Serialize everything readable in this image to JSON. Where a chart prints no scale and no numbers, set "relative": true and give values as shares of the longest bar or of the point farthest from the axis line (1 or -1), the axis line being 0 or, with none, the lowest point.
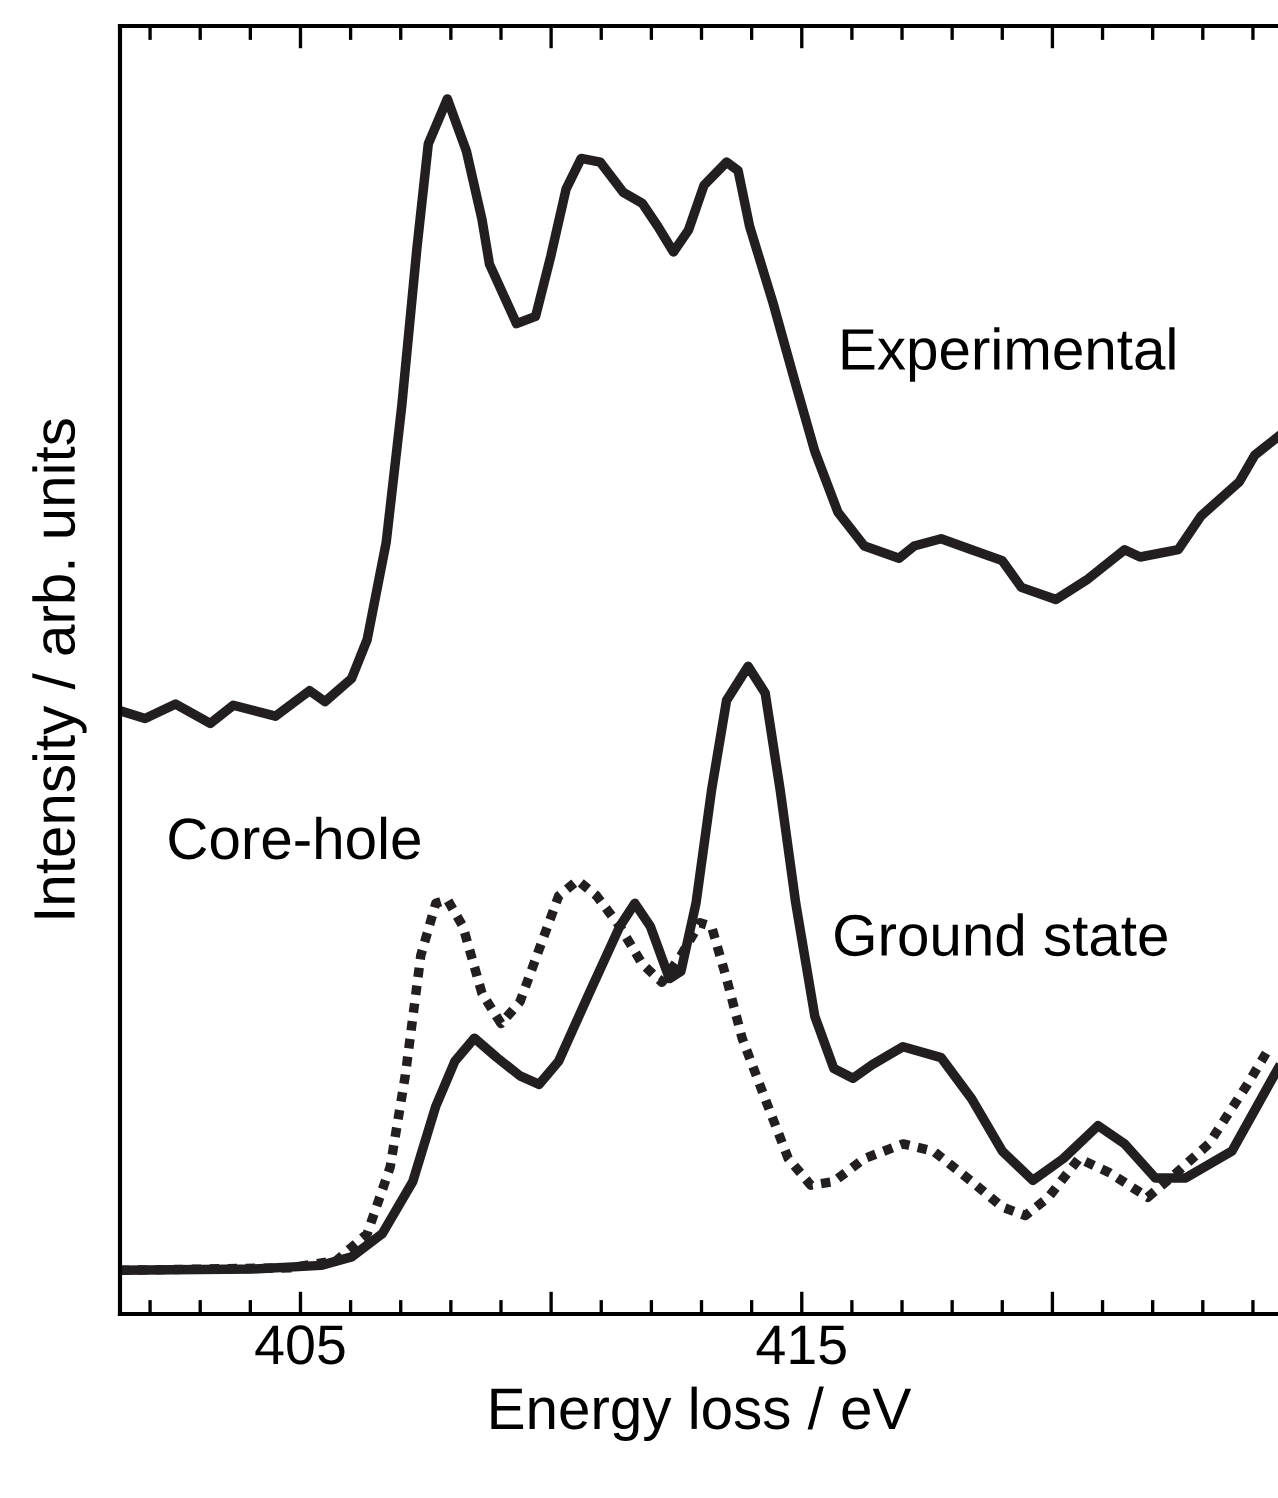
{
  "chart_data": {
    "type": "line",
    "xlabel": "Energy loss / eV",
    "ylabel": "Intensity / arb. units",
    "relative": true,
    "tick_labels": "x",
    "grid": false,
    "legend": false,
    "marker": "none",
    "xlim": [
      401.4,
      424.5
    ],
    "xticks": [
      405,
      {
        "value": 410,
        "label": null
      },
      415,
      {
        "value": 420,
        "label": null
      }
    ],
    "series": [
      {
        "name": "Experimental",
        "color": "#231f20",
        "line_style": "solid",
        "x": [
          401.44,
          401.9,
          402.51,
          403.2,
          403.66,
          404.5,
          405.18,
          405.49,
          406.02,
          406.33,
          406.71,
          407.02,
          407.32,
          407.55,
          407.93,
          408.31,
          408.62,
          408.77,
          409.31,
          409.69,
          409.99,
          410.3,
          410.6,
          410.98,
          411.44,
          411.82,
          412.13,
          412.44,
          412.74,
          413.05,
          413.5,
          413.73,
          413.96,
          414.42,
          414.88,
          415.26,
          415.72,
          416.25,
          416.94,
          417.24,
          417.78,
          418.39,
          419.0,
          419.38,
          420.07,
          420.68,
          421.44,
          421.75,
          422.51,
          422.97,
          423.73,
          424.04,
          424.5
        ],
        "values": [
          0.496,
          0.49,
          0.502,
          0.486,
          0.501,
          0.492,
          0.513,
          0.504,
          0.523,
          0.555,
          0.635,
          0.747,
          0.876,
          0.963,
          1.0,
          0.957,
          0.901,
          0.864,
          0.815,
          0.821,
          0.87,
          0.926,
          0.951,
          0.948,
          0.923,
          0.914,
          0.895,
          0.874,
          0.892,
          0.929,
          0.948,
          0.941,
          0.895,
          0.833,
          0.765,
          0.71,
          0.66,
          0.632,
          0.622,
          0.632,
          0.638,
          0.629,
          0.62,
          0.598,
          0.588,
          0.604,
          0.629,
          0.623,
          0.629,
          0.657,
          0.685,
          0.707,
          0.722
        ]
      },
      {
        "name": "Ground state",
        "color": "#231f20",
        "line_style": "solid",
        "x": [
          401.4,
          404.04,
          405.41,
          406.02,
          406.63,
          407.24,
          407.7,
          408.08,
          408.47,
          408.92,
          409.38,
          409.76,
          410.15,
          410.76,
          411.37,
          411.67,
          411.98,
          412.36,
          412.59,
          412.89,
          413.2,
          413.5,
          413.93,
          414.27,
          414.57,
          414.88,
          415.26,
          415.64,
          416.02,
          416.4,
          417.02,
          417.78,
          418.39,
          419.0,
          419.61,
          420.22,
          420.91,
          421.44,
          422.05,
          422.66,
          423.58,
          424.5
        ],
        "values": [
          0.036,
          0.037,
          0.04,
          0.047,
          0.066,
          0.109,
          0.171,
          0.208,
          0.227,
          0.211,
          0.196,
          0.189,
          0.208,
          0.264,
          0.319,
          0.338,
          0.319,
          0.276,
          0.282,
          0.338,
          0.431,
          0.505,
          0.533,
          0.511,
          0.431,
          0.338,
          0.245,
          0.202,
          0.194,
          0.205,
          0.22,
          0.211,
          0.177,
          0.134,
          0.11,
          0.128,
          0.155,
          0.14,
          0.112,
          0.112,
          0.134,
          0.202
        ]
      },
      {
        "name": "Core-hole",
        "color": "#231f20",
        "line_style": "dotted",
        "x": [
          401.4,
          404.8,
          405.72,
          406.33,
          406.79,
          407.09,
          407.4,
          407.7,
          407.93,
          408.24,
          408.62,
          409.0,
          409.38,
          409.76,
          410.15,
          410.53,
          410.91,
          411.37,
          411.82,
          412.21,
          412.59,
          412.97,
          413.2,
          413.5,
          413.81,
          414.27,
          414.73,
          415.18,
          415.64,
          416.25,
          417.02,
          417.63,
          418.39,
          419.0,
          419.46,
          419.92,
          420.53,
          421.15,
          421.9,
          422.36,
          423.12,
          423.89,
          424.34
        ],
        "values": [
          0.036,
          0.038,
          0.044,
          0.066,
          0.121,
          0.196,
          0.295,
          0.338,
          0.341,
          0.319,
          0.264,
          0.239,
          0.257,
          0.3,
          0.344,
          0.357,
          0.344,
          0.319,
          0.288,
          0.273,
          0.295,
          0.322,
          0.319,
          0.276,
          0.227,
          0.177,
          0.128,
          0.106,
          0.109,
          0.128,
          0.14,
          0.134,
          0.109,
          0.088,
          0.081,
          0.096,
          0.128,
          0.116,
          0.096,
          0.112,
          0.14,
          0.189,
          0.22
        ]
      }
    ]
  }
}
